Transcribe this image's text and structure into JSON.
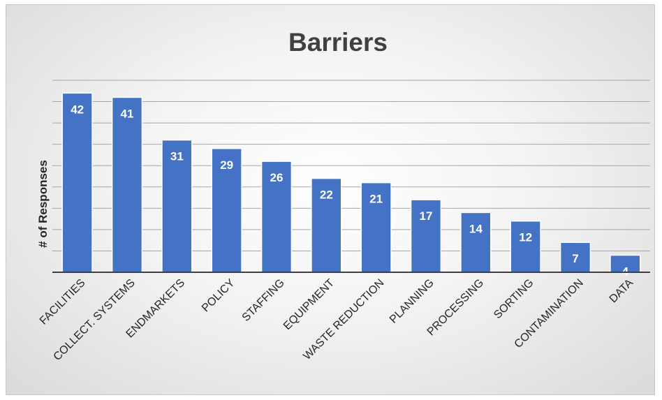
{
  "chart_data": {
    "type": "bar",
    "title": "Barriers",
    "xlabel": "",
    "ylabel": "# of Responses",
    "categories": [
      "FACILITIES",
      "COLLECT. SYSTEMS",
      "ENDMARKETS",
      "POLICY",
      "STAFFING",
      "EQUIPMENT",
      "WASTE REDUCTION",
      "PLANNING",
      "PROCESSING",
      "SORTING",
      "CONTAMINATION",
      "DATA"
    ],
    "values": [
      42,
      41,
      31,
      29,
      26,
      22,
      21,
      17,
      14,
      12,
      7,
      4
    ],
    "ylim": [
      0,
      45
    ],
    "ytick_step": 5,
    "grid": true,
    "data_labels": true,
    "legend": "none",
    "bar_color": "#4472c4",
    "label_color": "#ffffff"
  }
}
